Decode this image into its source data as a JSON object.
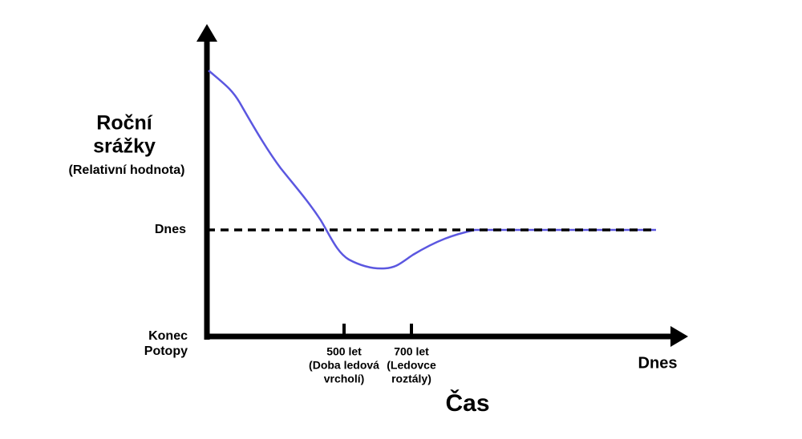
{
  "y_axis": {
    "title": [
      "Roční",
      "srážky"
    ],
    "subtitle": "(Relativní hodnota)",
    "level_label": "Dnes",
    "origin_label": [
      "Konec",
      "Potopy"
    ]
  },
  "x_axis": {
    "title": "Čas",
    "end_label": "Dnes",
    "ticks": [
      {
        "lines": [
          "500 let",
          "(Doba ledová",
          "vrcholí)"
        ]
      },
      {
        "lines": [
          "700 let",
          "(Ledovce",
          "roztály)"
        ]
      }
    ]
  }
}
